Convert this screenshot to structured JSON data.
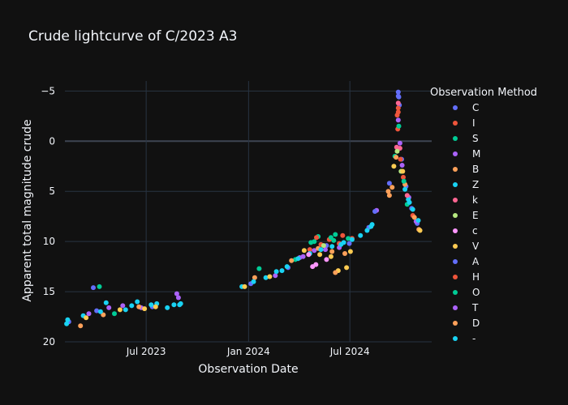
{
  "chart_data": {
    "type": "scatter",
    "title": "Crude lightcurve of C/2023 A3",
    "xlabel": "Observation Date",
    "ylabel": "Apparent total magnitude crude",
    "x_axis": {
      "type": "date",
      "range": [
        "2023-02-05",
        "2024-11-25"
      ],
      "ticks": [
        {
          "value": "2023-07-01",
          "label": "Jul 2023"
        },
        {
          "value": "2024-01-01",
          "label": "Jan 2024"
        },
        {
          "value": "2024-07-01",
          "label": "Jul 2024"
        }
      ]
    },
    "y_axis": {
      "range": [
        20,
        -6
      ],
      "reversed": true,
      "ticks": [
        {
          "value": -5,
          "label": "−5"
        },
        {
          "value": 0,
          "label": "0"
        },
        {
          "value": 5,
          "label": "5"
        },
        {
          "value": 10,
          "label": "10"
        },
        {
          "value": 15,
          "label": "15"
        },
        {
          "value": 20,
          "label": "20"
        }
      ]
    },
    "grid": true,
    "legend_title": "Observation Method",
    "legend_position": "right",
    "series": [
      {
        "name": "C",
        "color": "#636efa",
        "points": [
          [
            "2023-02-12",
            18.0
          ],
          [
            "2023-04-03",
            16.9
          ],
          [
            "2023-07-12",
            16.5
          ],
          [
            "2024-01-05",
            14.2
          ],
          [
            "2024-03-12",
            12.6
          ],
          [
            "2024-05-20",
            10.4
          ],
          [
            "2024-06-30",
            10.2
          ],
          [
            "2024-08-04",
            8.6
          ],
          [
            "2024-09-10",
            4.2
          ],
          [
            "2024-09-26",
            -4.9
          ],
          [
            "2024-09-27",
            -4.4
          ],
          [
            "2024-09-28",
            -3.6
          ],
          [
            "2024-10-02",
            1.8
          ],
          [
            "2024-10-10",
            4.5
          ],
          [
            "2024-10-20",
            6.7
          ],
          [
            "2024-10-30",
            8.2
          ]
        ]
      },
      {
        "name": "I",
        "color": "#ef553b",
        "points": [
          [
            "2024-04-20",
            10.8
          ],
          [
            "2024-05-10",
            10.3
          ],
          [
            "2024-05-25",
            9.8
          ],
          [
            "2024-06-12",
            10.2
          ],
          [
            "2024-07-05",
            9.7
          ],
          [
            "2024-09-24",
            -2.6
          ],
          [
            "2024-09-25",
            -1.2
          ],
          [
            "2024-09-26",
            -3.3
          ],
          [
            "2024-09-30",
            1.8
          ],
          [
            "2024-10-05",
            3.6
          ],
          [
            "2024-10-22",
            7.4
          ]
        ]
      },
      {
        "name": "S",
        "color": "#00cc96",
        "points": [
          [
            "2023-04-08",
            14.5
          ],
          [
            "2023-05-05",
            17.2
          ],
          [
            "2024-01-20",
            12.7
          ],
          [
            "2024-03-25",
            11.8
          ],
          [
            "2024-04-28",
            10.0
          ],
          [
            "2024-05-05",
            9.5
          ],
          [
            "2024-05-28",
            9.6
          ],
          [
            "2024-06-05",
            9.3
          ],
          [
            "2024-06-28",
            9.7
          ],
          [
            "2024-09-20",
            1.5
          ],
          [
            "2024-09-27",
            -1.5
          ],
          [
            "2024-10-12",
            6.3
          ]
        ]
      },
      {
        "name": "M",
        "color": "#ab63fa",
        "points": [
          [
            "2023-03-20",
            17.2
          ],
          [
            "2023-04-25",
            16.6
          ],
          [
            "2023-05-20",
            16.4
          ],
          [
            "2023-06-22",
            16.6
          ],
          [
            "2023-08-25",
            15.2
          ],
          [
            "2024-02-18",
            13.4
          ],
          [
            "2024-04-02",
            11.6
          ],
          [
            "2024-04-28",
            10.9
          ],
          [
            "2024-05-18",
            10.8
          ],
          [
            "2024-06-12",
            10.6
          ],
          [
            "2024-08-18",
            6.9
          ],
          [
            "2024-09-26",
            -2.1
          ],
          [
            "2024-10-03",
            2.4
          ],
          [
            "2024-10-15",
            5.6
          ],
          [
            "2024-10-28",
            8.0
          ]
        ]
      },
      {
        "name": "B",
        "color": "#ffa15a",
        "points": [
          [
            "2023-03-05",
            18.4
          ],
          [
            "2023-04-15",
            17.3
          ],
          [
            "2023-06-18",
            16.5
          ],
          [
            "2024-01-12",
            13.6
          ],
          [
            "2024-03-18",
            11.9
          ],
          [
            "2024-05-05",
            10.7
          ],
          [
            "2024-05-30",
            11.0
          ],
          [
            "2024-06-22",
            11.2
          ],
          [
            "2024-09-10",
            5.4
          ],
          [
            "2024-09-15",
            4.6
          ],
          [
            "2024-09-22",
            1.6
          ],
          [
            "2024-10-08",
            4.3
          ],
          [
            "2024-10-25",
            7.6
          ],
          [
            "2024-11-02",
            8.8
          ]
        ]
      },
      {
        "name": "Z",
        "color": "#19d3f3",
        "points": [
          [
            "2023-02-10",
            17.8
          ],
          [
            "2023-03-10",
            17.4
          ],
          [
            "2023-04-20",
            16.1
          ],
          [
            "2023-05-25",
            16.8
          ],
          [
            "2023-06-15",
            16.0
          ],
          [
            "2023-07-10",
            16.3
          ],
          [
            "2023-07-20",
            16.2
          ],
          [
            "2023-08-08",
            16.6
          ],
          [
            "2023-08-20",
            16.3
          ],
          [
            "2023-09-01",
            16.2
          ],
          [
            "2023-12-20",
            14.5
          ],
          [
            "2024-01-10",
            14.0
          ],
          [
            "2024-02-01",
            13.6
          ],
          [
            "2024-02-20",
            13.0
          ],
          [
            "2024-03-10",
            12.5
          ],
          [
            "2024-03-30",
            11.7
          ],
          [
            "2024-04-20",
            11.2
          ],
          [
            "2024-05-10",
            10.8
          ],
          [
            "2024-05-30",
            10.5
          ],
          [
            "2024-06-20",
            10.1
          ],
          [
            "2024-07-05",
            9.8
          ],
          [
            "2024-07-20",
            9.4
          ],
          [
            "2024-08-01",
            8.9
          ],
          [
            "2024-08-10",
            8.3
          ],
          [
            "2024-10-08",
            4.8
          ],
          [
            "2024-10-14",
            5.8
          ],
          [
            "2024-10-22",
            6.8
          ],
          [
            "2024-11-01",
            7.9
          ]
        ]
      },
      {
        "name": "k",
        "color": "#ff6692",
        "points": [
          [
            "2024-09-23",
            0.6
          ],
          [
            "2024-09-26",
            -3.8
          ],
          [
            "2024-09-29",
            0.7
          ],
          [
            "2024-10-12",
            5.4
          ]
        ]
      },
      {
        "name": "E",
        "color": "#b6e880",
        "points": [
          [
            "2024-05-15",
            10.4
          ],
          [
            "2024-09-24",
            1.0
          ],
          [
            "2024-10-01",
            3.0
          ]
        ]
      },
      {
        "name": "c",
        "color": "#ff97ff",
        "points": [
          [
            "2024-04-18",
            11.3
          ],
          [
            "2024-04-25",
            12.5
          ],
          [
            "2024-05-01",
            12.3
          ],
          [
            "2024-05-20",
            11.8
          ]
        ]
      },
      {
        "name": "V",
        "color": "#fecb52",
        "points": [
          [
            "2023-03-15",
            17.6
          ],
          [
            "2023-05-15",
            16.8
          ],
          [
            "2023-06-28",
            16.7
          ],
          [
            "2023-07-18",
            16.5
          ],
          [
            "2023-12-25",
            14.5
          ],
          [
            "2024-02-08",
            13.5
          ],
          [
            "2024-04-10",
            10.9
          ],
          [
            "2024-05-08",
            11.3
          ],
          [
            "2024-05-28",
            11.5
          ],
          [
            "2024-06-10",
            12.9
          ],
          [
            "2024-06-25",
            12.6
          ],
          [
            "2024-07-02",
            11.0
          ],
          [
            "2024-09-18",
            2.5
          ],
          [
            "2024-10-04",
            3.0
          ],
          [
            "2024-11-04",
            8.9
          ]
        ]
      },
      {
        "name": "A",
        "color": "#636efa",
        "points": [
          [
            "2023-03-28",
            14.6
          ],
          [
            "2024-08-15",
            7.0
          ],
          [
            "2024-09-26",
            -4.5
          ]
        ]
      },
      {
        "name": "H",
        "color": "#ef553b",
        "points": [
          [
            "2024-05-02",
            9.6
          ],
          [
            "2024-06-18",
            9.4
          ],
          [
            "2024-09-26",
            -2.9
          ]
        ]
      },
      {
        "name": "O",
        "color": "#00cc96",
        "points": [
          [
            "2024-04-22",
            10.1
          ],
          [
            "2024-06-02",
            9.9
          ],
          [
            "2024-10-06",
            4.0
          ]
        ]
      },
      {
        "name": "T",
        "color": "#ab63fa",
        "points": [
          [
            "2023-08-28",
            15.6
          ],
          [
            "2024-04-08",
            11.5
          ],
          [
            "2024-09-29",
            0.2
          ]
        ]
      },
      {
        "name": "D",
        "color": "#ffa15a",
        "points": [
          [
            "2024-06-05",
            13.1
          ],
          [
            "2024-09-08",
            5.0
          ]
        ]
      },
      {
        "name": "-",
        "color": "#19d3f3",
        "points": [
          [
            "2023-02-08",
            18.2
          ],
          [
            "2023-04-10",
            17.0
          ],
          [
            "2023-06-05",
            16.4
          ],
          [
            "2023-08-30",
            16.3
          ],
          [
            "2024-03-01",
            12.9
          ],
          [
            "2024-06-15",
            10.3
          ],
          [
            "2024-08-08",
            8.5
          ],
          [
            "2024-10-16",
            6.1
          ]
        ]
      }
    ]
  }
}
